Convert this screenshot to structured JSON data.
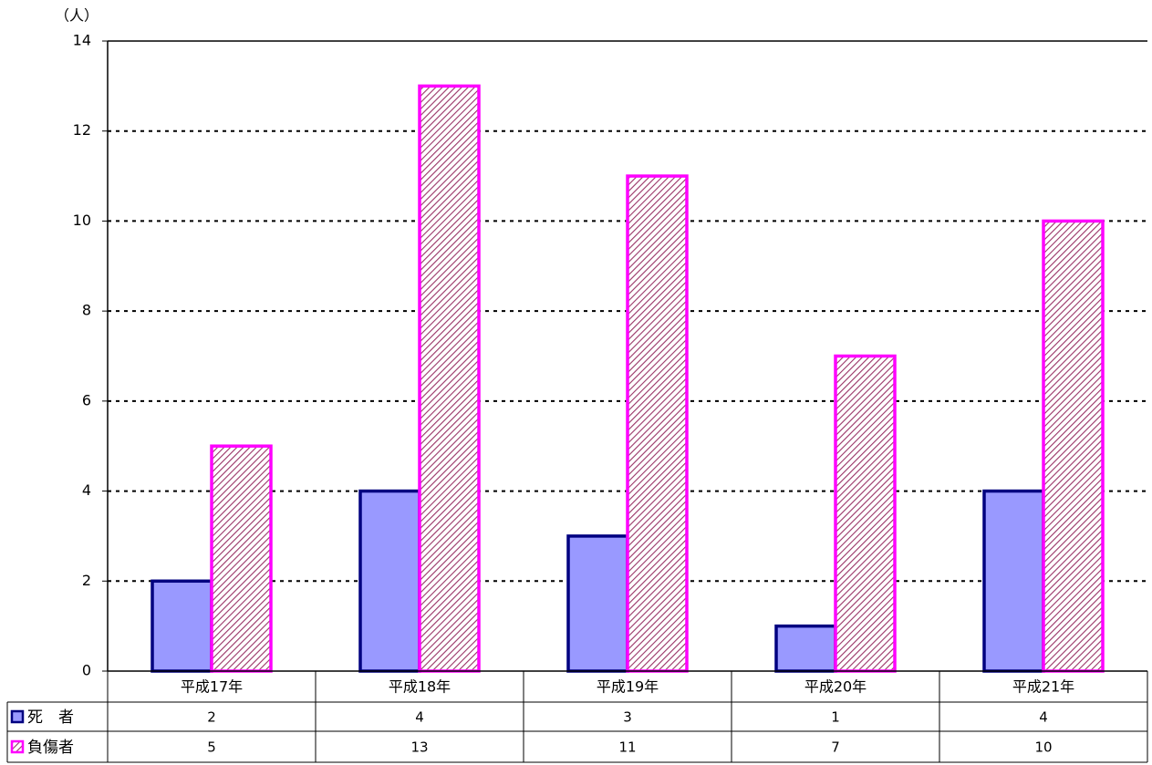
{
  "chart_data": {
    "type": "bar",
    "y_label": "（人）",
    "categories": [
      "平成17年",
      "平成18年",
      "平成19年",
      "平成20年",
      "平成21年"
    ],
    "series": [
      {
        "name": "死　者",
        "color": "#9999ff",
        "values": [
          2,
          4,
          3,
          1,
          4
        ]
      },
      {
        "name": "負傷者",
        "color": "#ff00ff",
        "values": [
          5,
          13,
          11,
          7,
          10
        ]
      }
    ],
    "ylim": [
      0,
      14
    ],
    "yticks": [
      0,
      2,
      4,
      6,
      8,
      10,
      12,
      14
    ],
    "grid": true,
    "data_table": true
  }
}
